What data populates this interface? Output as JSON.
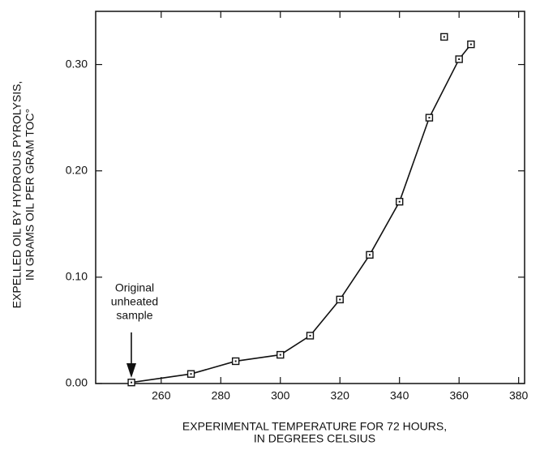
{
  "chart_data": {
    "type": "line",
    "x_label": [
      "EXPERIMENTAL TEMPERATURE FOR 72 HOURS,",
      "IN DEGREES CELSIUS"
    ],
    "y_label": [
      "EXPELLED OIL BY HYDROUS PYROLYSIS,",
      "IN GRAMS OIL PER GRAM TOC°"
    ],
    "annotation": [
      "Original",
      "unheated",
      "sample"
    ],
    "series": [
      {
        "x": [
          250,
          270,
          285,
          300,
          310,
          320,
          330,
          340,
          350,
          360,
          364
        ],
        "values": [
          0.001,
          0.009,
          0.021,
          0.027,
          0.045,
          0.079,
          0.121,
          0.171,
          0.25,
          0.305,
          0.319
        ],
        "line": true,
        "color": "#111111"
      },
      {
        "x": [
          355
        ],
        "values": [
          0.326
        ],
        "line": false,
        "color": "#111111"
      }
    ],
    "xlim": [
      238,
      382
    ],
    "xticks": [
      260,
      280,
      300,
      320,
      340,
      360,
      380
    ],
    "ylim": [
      0,
      0.35
    ],
    "yticks": [
      {
        "value": 0,
        "label": "0.00"
      },
      {
        "value": 0.1,
        "label": "0.10"
      },
      {
        "value": 0.2,
        "label": "0.20"
      },
      {
        "value": 0.3,
        "label": "0.30"
      }
    ]
  }
}
